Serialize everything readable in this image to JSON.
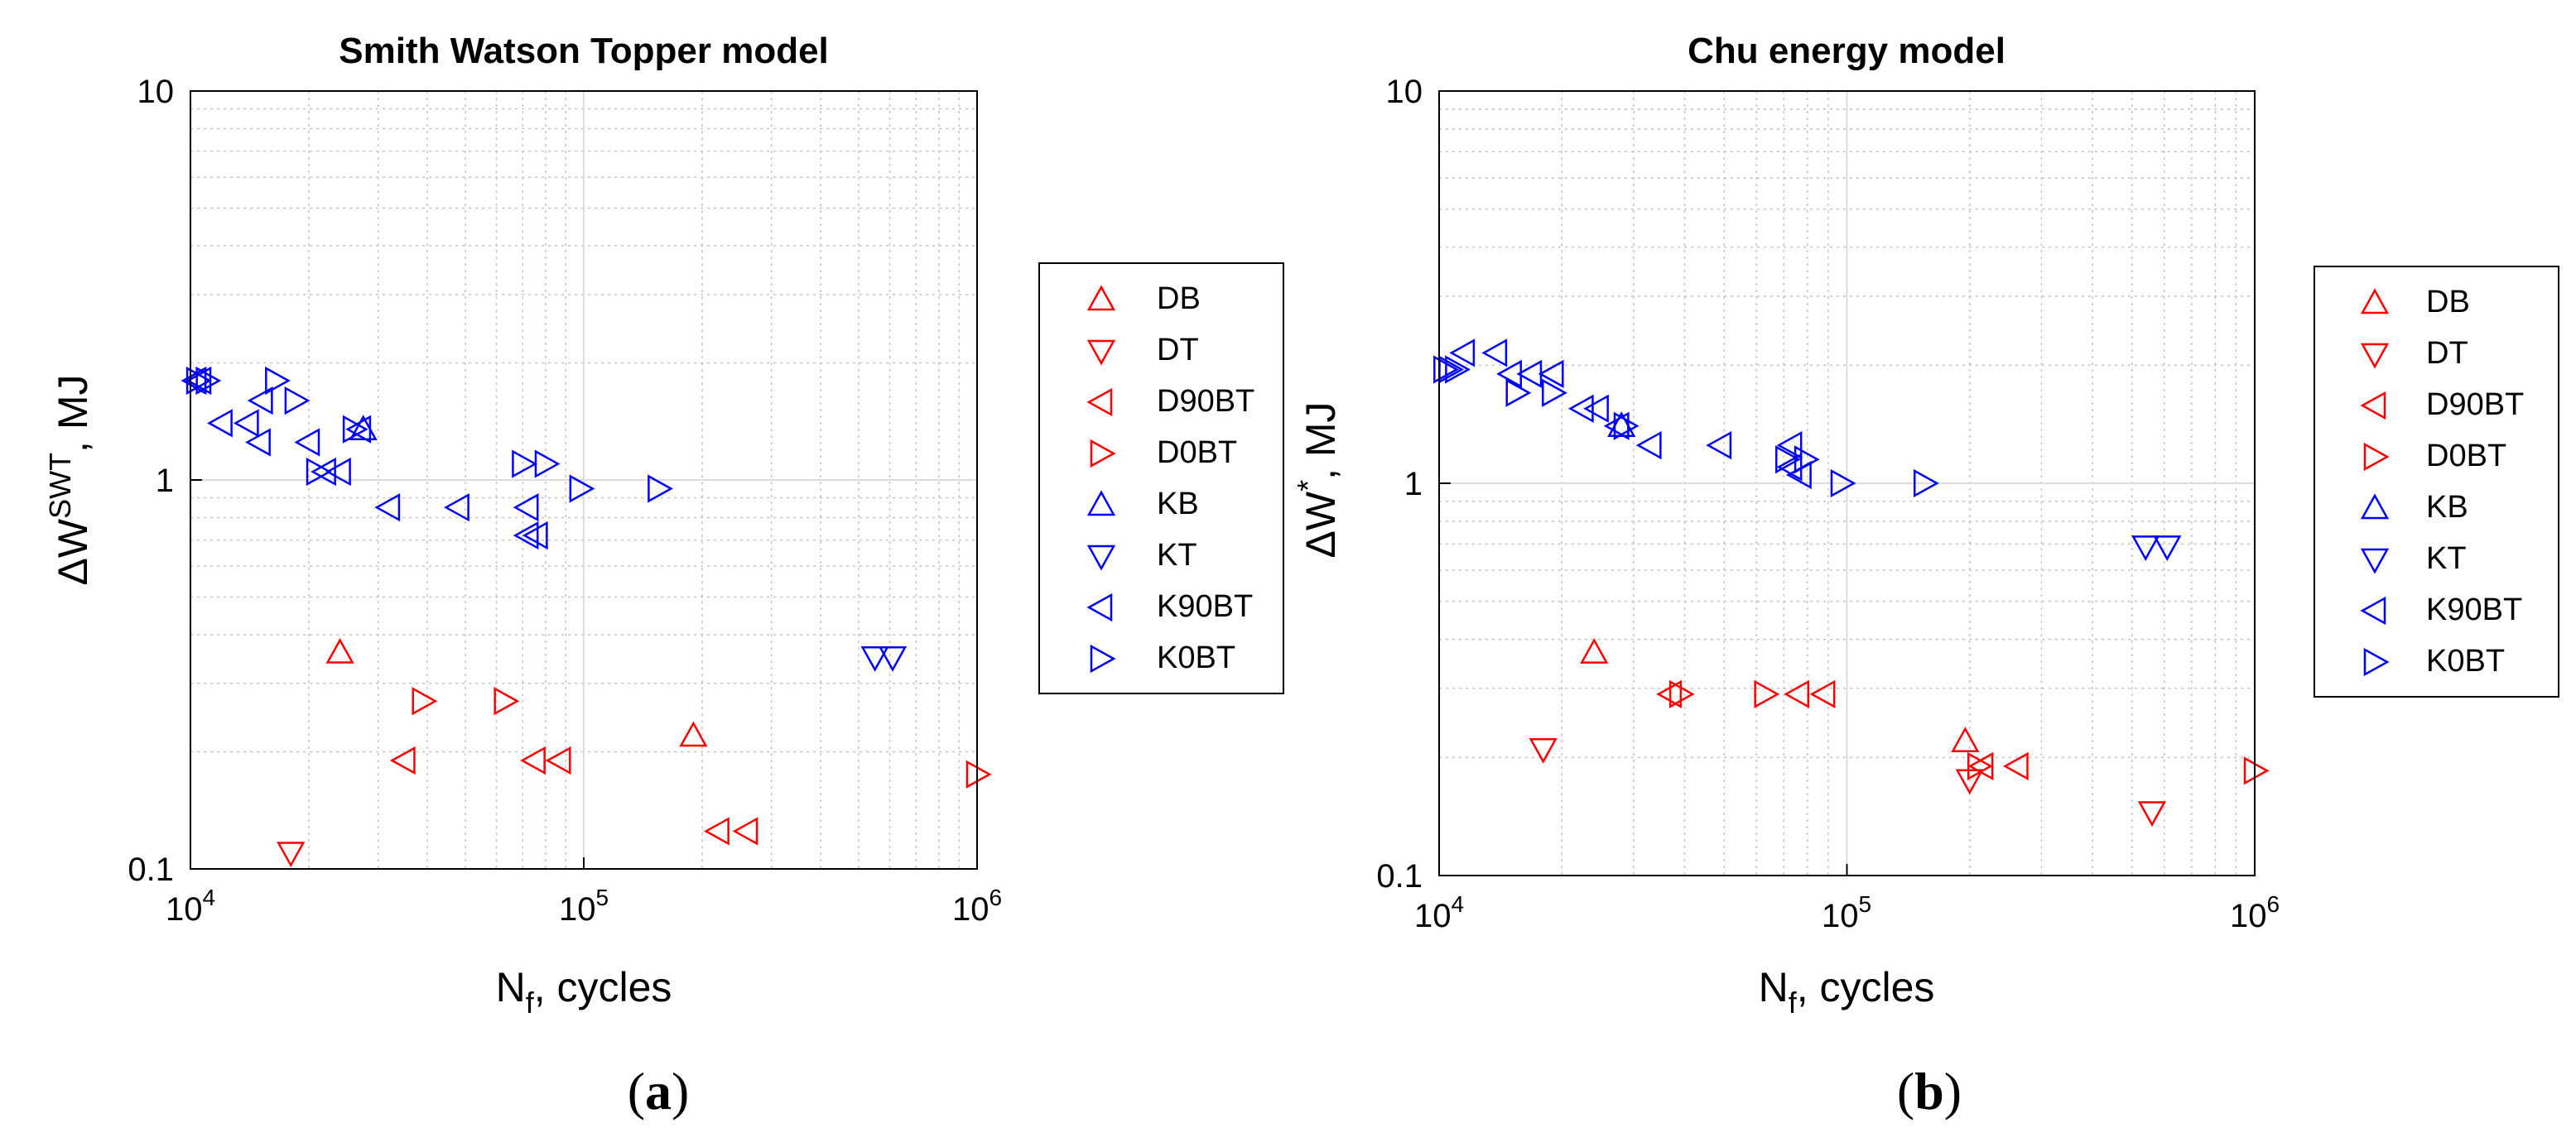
{
  "chart_data": [
    {
      "type": "scatter",
      "title": "Smith Watson Topper model",
      "xlabel_main": "N",
      "xlabel_sub": "f",
      "xlabel_rest": ", cycles",
      "ylabel_prefix": "ΔW",
      "ylabel_sup": "SWT",
      "ylabel_rest": ", MJ",
      "xscale": "log",
      "yscale": "log",
      "xlim": [
        10000,
        1000000
      ],
      "ylim": [
        0.1,
        10
      ],
      "xticks": [
        {
          "base": "10",
          "exp": "4"
        },
        {
          "base": "10",
          "exp": "5"
        },
        {
          "base": "10",
          "exp": "6"
        }
      ],
      "yticks": [
        "0.1",
        "1",
        "10"
      ],
      "grid": true,
      "legend_position": "outside-right",
      "panel_label": "a",
      "series": [
        {
          "name": "DB",
          "color": "#ff0000",
          "marker": "triangle-up",
          "points": [
            [
              24000,
              0.36
            ],
            [
              190000,
              0.22
            ]
          ]
        },
        {
          "name": "DT",
          "color": "#ff0000",
          "marker": "triangle-down",
          "points": [
            [
              18000,
              0.11
            ]
          ]
        },
        {
          "name": "D90BT",
          "color": "#ff0000",
          "marker": "triangle-left",
          "points": [
            [
              35000,
              0.19
            ],
            [
              75000,
              0.19
            ],
            [
              87000,
              0.19
            ],
            [
              220000,
              0.125
            ],
            [
              260000,
              0.125
            ]
          ]
        },
        {
          "name": "D0BT",
          "color": "#ff0000",
          "marker": "triangle-right",
          "points": [
            [
              39000,
              0.27
            ],
            [
              63000,
              0.27
            ],
            [
              1000000,
              0.175
            ]
          ]
        },
        {
          "name": "KB",
          "color": "#0000ff",
          "marker": "triangle-up",
          "points": [
            [
              27500,
              1.35
            ]
          ]
        },
        {
          "name": "KT",
          "color": "#0000ff",
          "marker": "triangle-down",
          "points": [
            [
              550000,
              0.35
            ],
            [
              610000,
              0.35
            ]
          ]
        },
        {
          "name": "K90BT",
          "color": "#0000ff",
          "marker": "triangle-left",
          "points": [
            [
              10300,
              1.8
            ],
            [
              10600,
              1.8
            ],
            [
              12000,
              1.4
            ],
            [
              14000,
              1.4
            ],
            [
              15000,
              1.25
            ],
            [
              15200,
              1.6
            ],
            [
              20000,
              1.25
            ],
            [
              22000,
              1.05
            ],
            [
              24000,
              1.05
            ],
            [
              27000,
              1.35
            ],
            [
              32000,
              0.85
            ],
            [
              48000,
              0.85
            ],
            [
              72000,
              0.85
            ],
            [
              72000,
              0.72
            ],
            [
              76000,
              0.72
            ]
          ]
        },
        {
          "name": "K0BT",
          "color": "#0000ff",
          "marker": "triangle-right",
          "points": [
            [
              10400,
              1.8
            ],
            [
              11000,
              1.8
            ],
            [
              16500,
              1.8
            ],
            [
              18500,
              1.6
            ],
            [
              21000,
              1.05
            ],
            [
              26000,
              1.35
            ],
            [
              70000,
              1.1
            ],
            [
              80000,
              1.1
            ],
            [
              98000,
              0.95
            ],
            [
              155000,
              0.95
            ]
          ]
        }
      ]
    },
    {
      "type": "scatter",
      "title": "Chu energy model",
      "xlabel_main": "N",
      "xlabel_sub": "f",
      "xlabel_rest": ", cycles",
      "ylabel_prefix": "ΔW",
      "ylabel_sup": "*",
      "ylabel_rest": ", MJ",
      "xscale": "log",
      "yscale": "log",
      "xlim": [
        10000,
        1000000
      ],
      "ylim": [
        0.1,
        10
      ],
      "xticks": [
        {
          "base": "10",
          "exp": "4"
        },
        {
          "base": "10",
          "exp": "5"
        },
        {
          "base": "10",
          "exp": "6"
        }
      ],
      "yticks": [
        "0.1",
        "1",
        "10"
      ],
      "grid": true,
      "legend_position": "outside-right",
      "panel_label": "b",
      "series": [
        {
          "name": "DB",
          "color": "#ff0000",
          "marker": "triangle-up",
          "points": [
            [
              24000,
              0.37
            ],
            [
              195000,
              0.22
            ]
          ]
        },
        {
          "name": "DT",
          "color": "#ff0000",
          "marker": "triangle-down",
          "points": [
            [
              18000,
              0.21
            ],
            [
              200000,
              0.175
            ],
            [
              560000,
              0.145
            ]
          ]
        },
        {
          "name": "D90BT",
          "color": "#ff0000",
          "marker": "triangle-left",
          "points": [
            [
              37000,
              0.29
            ],
            [
              76000,
              0.29
            ],
            [
              88000,
              0.29
            ],
            [
              215000,
              0.19
            ],
            [
              262000,
              0.19
            ]
          ]
        },
        {
          "name": "D0BT",
          "color": "#ff0000",
          "marker": "triangle-right",
          "points": [
            [
              39000,
              0.29
            ],
            [
              63000,
              0.29
            ],
            [
              210000,
              0.19
            ],
            [
              1000000,
              0.185
            ]
          ]
        },
        {
          "name": "KB",
          "color": "#0000ff",
          "marker": "triangle-up",
          "points": [
            [
              28000,
              1.4
            ]
          ]
        },
        {
          "name": "KT",
          "color": "#0000ff",
          "marker": "triangle-down",
          "points": [
            [
              540000,
              0.69
            ],
            [
              610000,
              0.69
            ]
          ]
        },
        {
          "name": "K90BT",
          "color": "#0000ff",
          "marker": "triangle-left",
          "points": [
            [
              11500,
              2.15
            ],
            [
              13800,
              2.15
            ],
            [
              15000,
              1.9
            ],
            [
              16800,
              1.9
            ],
            [
              19000,
              1.9
            ],
            [
              22500,
              1.55
            ],
            [
              24500,
              1.55
            ],
            [
              27500,
              1.4
            ],
            [
              33000,
              1.25
            ],
            [
              49000,
              1.25
            ],
            [
              73000,
              1.25
            ],
            [
              73000,
              1.1
            ],
            [
              77000,
              1.05
            ]
          ]
        },
        {
          "name": "K0BT",
          "color": "#0000ff",
          "marker": "triangle-right",
          "points": [
            [
              10300,
              1.95
            ],
            [
              10600,
              1.95
            ],
            [
              11000,
              1.95
            ],
            [
              15500,
              1.7
            ],
            [
              19000,
              1.7
            ],
            [
              28500,
              1.4
            ],
            [
              71000,
              1.15
            ],
            [
              79000,
              1.15
            ],
            [
              97000,
              1.0
            ],
            [
              155000,
              1.0
            ]
          ]
        }
      ]
    }
  ]
}
